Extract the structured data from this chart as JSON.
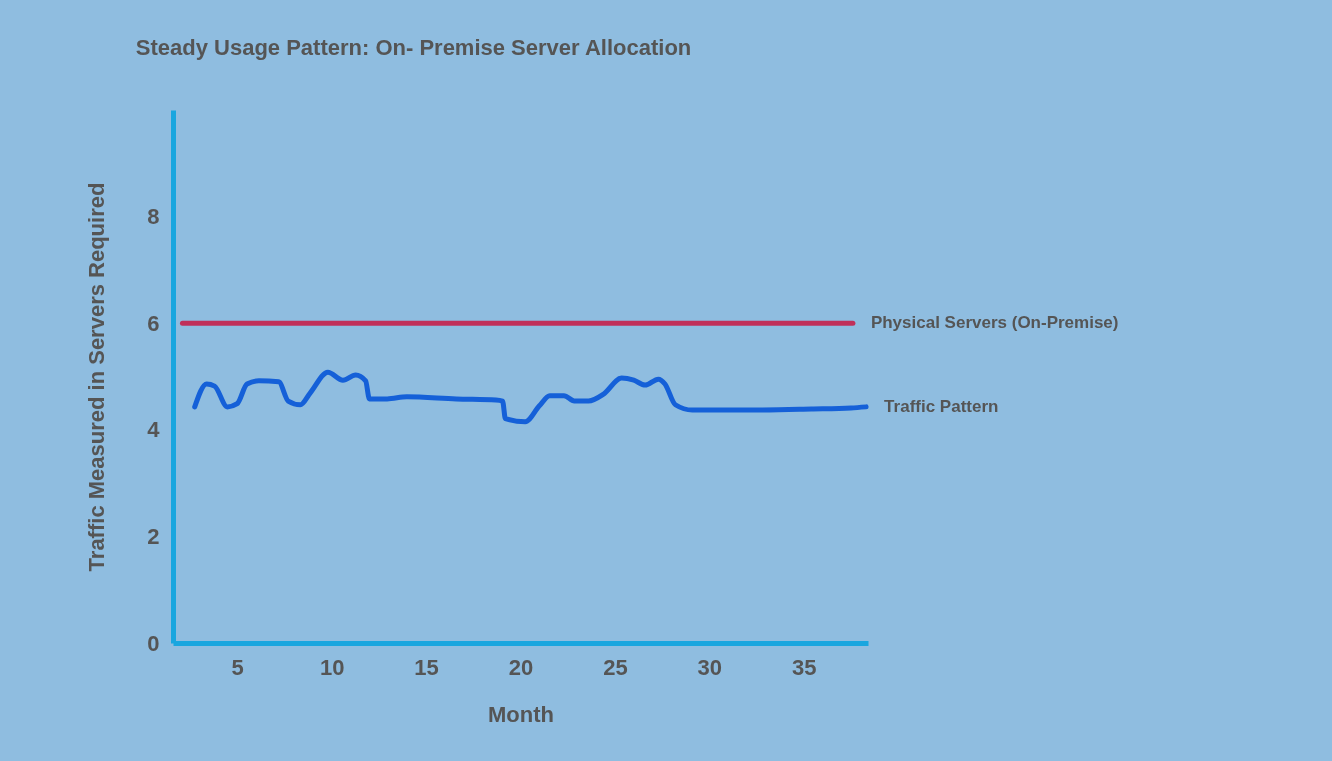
{
  "chart_data": {
    "type": "line",
    "title": "Steady Usage Pattern: On- Premise Server Allocation",
    "xlabel": "Month",
    "ylabel": "Traffic Measured in Servers Required",
    "xlim": [
      1.6,
      38.4
    ],
    "xticks": [
      5,
      10,
      15,
      20,
      25,
      30,
      35
    ],
    "ylim": [
      0,
      10
    ],
    "yticks": [
      0,
      2,
      4,
      6,
      8
    ],
    "grid": false,
    "legend": false,
    "marker": "none",
    "line_style": "solid",
    "series": [
      {
        "name": "Physical Servers (On-Premise)",
        "color": "#c0305a",
        "x": [
          2.1,
          37.6
        ],
        "values": [
          6.0,
          6.0
        ]
      },
      {
        "name": "Traffic Pattern",
        "color": "#1560d8",
        "x": [
          2.75,
          3.38,
          3.8,
          4.48,
          5.0,
          5.52,
          6.15,
          7.2,
          7.7,
          8.34,
          8.86,
          9.8,
          10.6,
          11.27,
          11.8,
          12.0,
          12.94,
          13.98,
          16.6,
          18.7,
          19.05,
          19.2,
          20.25,
          21.0,
          21.55,
          22.3,
          22.85,
          23.6,
          24.4,
          25.35,
          26.0,
          26.6,
          27.3,
          27.65,
          28.2,
          29.1,
          32.3,
          35.4,
          37.5,
          38.3
        ],
        "values": [
          4.43,
          4.86,
          4.82,
          4.43,
          4.49,
          4.86,
          4.92,
          4.9,
          4.54,
          4.47,
          4.69,
          5.08,
          4.93,
          5.03,
          4.92,
          4.58,
          4.58,
          4.62,
          4.58,
          4.56,
          4.54,
          4.21,
          4.15,
          4.45,
          4.64,
          4.64,
          4.54,
          4.54,
          4.67,
          4.97,
          4.93,
          4.84,
          4.95,
          4.86,
          4.47,
          4.37,
          4.37,
          4.39,
          4.41,
          4.43
        ]
      }
    ]
  }
}
